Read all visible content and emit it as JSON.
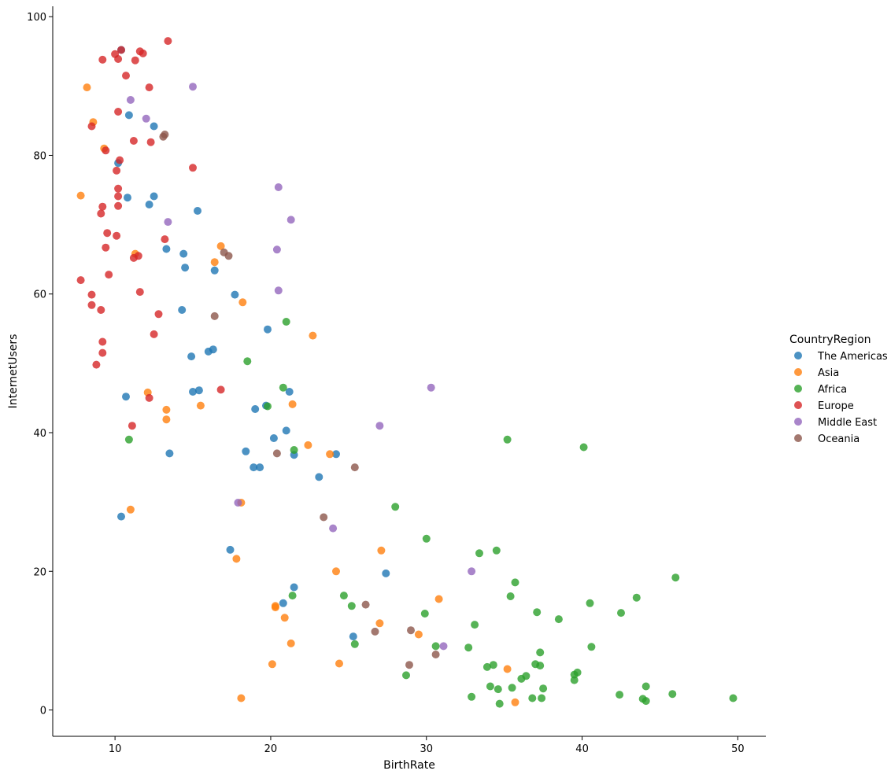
{
  "chart_data": {
    "type": "scatter",
    "title": "",
    "xlabel": "BirthRate",
    "ylabel": "InternetUsers",
    "xlim": [
      6,
      51.8
    ],
    "ylim": [
      -3.8,
      101.5
    ],
    "xticks": [
      10,
      20,
      30,
      40,
      50
    ],
    "yticks": [
      0,
      20,
      40,
      60,
      80,
      100
    ],
    "grid": false,
    "legend": {
      "title": "CountryRegion",
      "placement": "right"
    },
    "series": [
      {
        "name": "The Americas",
        "color": "#1f77b4",
        "points": [
          [
            10.4,
            95.2
          ],
          [
            10.9,
            85.8
          ],
          [
            12.5,
            84.2
          ],
          [
            10.2,
            78.9
          ],
          [
            10.8,
            73.9
          ],
          [
            12.2,
            72.9
          ],
          [
            12.5,
            74.1
          ],
          [
            15.3,
            72.0
          ],
          [
            13.3,
            66.5
          ],
          [
            14.4,
            65.8
          ],
          [
            14.5,
            63.8
          ],
          [
            16.4,
            63.4
          ],
          [
            17.7,
            59.9
          ],
          [
            14.3,
            57.7
          ],
          [
            19.8,
            54.9
          ],
          [
            14.9,
            51.0
          ],
          [
            16.0,
            51.7
          ],
          [
            16.3,
            52.0
          ],
          [
            15.0,
            45.9
          ],
          [
            15.4,
            46.1
          ],
          [
            10.7,
            45.2
          ],
          [
            19.0,
            43.4
          ],
          [
            19.7,
            43.9
          ],
          [
            21.2,
            45.9
          ],
          [
            20.2,
            39.2
          ],
          [
            21.0,
            40.3
          ],
          [
            13.5,
            37.0
          ],
          [
            18.4,
            37.3
          ],
          [
            21.5,
            36.8
          ],
          [
            24.2,
            36.9
          ],
          [
            18.9,
            35.0
          ],
          [
            19.3,
            35.0
          ],
          [
            23.1,
            33.6
          ],
          [
            10.4,
            27.9
          ],
          [
            17.4,
            23.1
          ],
          [
            27.4,
            19.7
          ],
          [
            21.5,
            17.7
          ],
          [
            20.8,
            15.4
          ],
          [
            25.3,
            10.6
          ]
        ]
      },
      {
        "name": "Asia",
        "color": "#ff7f0e",
        "points": [
          [
            8.2,
            89.8
          ],
          [
            8.6,
            84.8
          ],
          [
            9.3,
            81.0
          ],
          [
            7.8,
            74.2
          ],
          [
            11.3,
            65.8
          ],
          [
            16.8,
            66.9
          ],
          [
            16.4,
            64.6
          ],
          [
            18.2,
            58.8
          ],
          [
            22.7,
            54.0
          ],
          [
            12.1,
            45.8
          ],
          [
            15.5,
            43.9
          ],
          [
            21.4,
            44.1
          ],
          [
            13.3,
            43.3
          ],
          [
            13.3,
            41.9
          ],
          [
            22.4,
            38.2
          ],
          [
            23.8,
            36.9
          ],
          [
            18.1,
            29.9
          ],
          [
            11.0,
            28.9
          ],
          [
            17.8,
            21.8
          ],
          [
            27.1,
            23.0
          ],
          [
            24.2,
            20.0
          ],
          [
            30.8,
            16.0
          ],
          [
            20.3,
            15.0
          ],
          [
            20.3,
            14.8
          ],
          [
            20.9,
            13.3
          ],
          [
            27.0,
            12.5
          ],
          [
            29.5,
            10.9
          ],
          [
            21.3,
            9.6
          ],
          [
            20.1,
            6.6
          ],
          [
            24.4,
            6.7
          ],
          [
            35.2,
            5.9
          ],
          [
            18.1,
            1.7
          ],
          [
            35.7,
            1.1
          ]
        ]
      },
      {
        "name": "Africa",
        "color": "#2ca02c",
        "points": [
          [
            21.0,
            56.0
          ],
          [
            18.5,
            50.3
          ],
          [
            20.8,
            46.5
          ],
          [
            19.8,
            43.8
          ],
          [
            21.5,
            37.5
          ],
          [
            10.9,
            39.0
          ],
          [
            35.2,
            39.0
          ],
          [
            40.1,
            37.9
          ],
          [
            28.0,
            29.3
          ],
          [
            30.0,
            24.7
          ],
          [
            33.4,
            22.6
          ],
          [
            34.5,
            23.0
          ],
          [
            46.0,
            19.1
          ],
          [
            35.7,
            18.4
          ],
          [
            21.4,
            16.5
          ],
          [
            24.7,
            16.5
          ],
          [
            25.2,
            15.0
          ],
          [
            35.4,
            16.4
          ],
          [
            43.5,
            16.2
          ],
          [
            40.5,
            15.4
          ],
          [
            37.1,
            14.1
          ],
          [
            42.5,
            14.0
          ],
          [
            29.9,
            13.9
          ],
          [
            38.5,
            13.1
          ],
          [
            33.1,
            12.3
          ],
          [
            25.4,
            9.5
          ],
          [
            30.6,
            9.2
          ],
          [
            32.7,
            9.0
          ],
          [
            40.6,
            9.1
          ],
          [
            37.3,
            8.3
          ],
          [
            37.0,
            6.6
          ],
          [
            37.3,
            6.4
          ],
          [
            33.9,
            6.2
          ],
          [
            34.3,
            6.5
          ],
          [
            36.4,
            4.9
          ],
          [
            36.1,
            4.5
          ],
          [
            28.7,
            5.0
          ],
          [
            39.5,
            5.1
          ],
          [
            39.7,
            5.4
          ],
          [
            39.5,
            4.3
          ],
          [
            34.1,
            3.4
          ],
          [
            34.6,
            3.0
          ],
          [
            35.5,
            3.2
          ],
          [
            37.5,
            3.1
          ],
          [
            44.1,
            3.4
          ],
          [
            32.9,
            1.9
          ],
          [
            36.8,
            1.7
          ],
          [
            37.4,
            1.7
          ],
          [
            42.4,
            2.2
          ],
          [
            43.9,
            1.6
          ],
          [
            44.1,
            1.3
          ],
          [
            45.8,
            2.3
          ],
          [
            49.7,
            1.7
          ],
          [
            34.7,
            0.9
          ]
        ]
      },
      {
        "name": "Europe",
        "color": "#d62728",
        "points": [
          [
            13.4,
            96.5
          ],
          [
            11.6,
            95.0
          ],
          [
            11.8,
            94.7
          ],
          [
            10.4,
            95.2
          ],
          [
            10.0,
            94.6
          ],
          [
            9.2,
            93.8
          ],
          [
            10.2,
            93.9
          ],
          [
            11.3,
            93.7
          ],
          [
            10.7,
            91.5
          ],
          [
            12.2,
            89.8
          ],
          [
            10.2,
            86.3
          ],
          [
            8.5,
            84.2
          ],
          [
            11.2,
            82.1
          ],
          [
            12.3,
            81.9
          ],
          [
            9.4,
            80.7
          ],
          [
            10.3,
            79.3
          ],
          [
            10.1,
            77.8
          ],
          [
            15.0,
            78.2
          ],
          [
            10.2,
            75.2
          ],
          [
            10.2,
            74.1
          ],
          [
            9.2,
            72.6
          ],
          [
            10.2,
            72.7
          ],
          [
            9.1,
            71.6
          ],
          [
            9.5,
            68.8
          ],
          [
            10.1,
            68.4
          ],
          [
            13.2,
            67.9
          ],
          [
            9.4,
            66.7
          ],
          [
            11.5,
            65.5
          ],
          [
            11.2,
            65.2
          ],
          [
            9.6,
            62.8
          ],
          [
            7.8,
            62.0
          ],
          [
            8.5,
            59.9
          ],
          [
            11.6,
            60.3
          ],
          [
            8.5,
            58.4
          ],
          [
            9.1,
            57.7
          ],
          [
            12.8,
            57.1
          ],
          [
            12.5,
            54.2
          ],
          [
            9.2,
            53.1
          ],
          [
            9.2,
            51.5
          ],
          [
            8.8,
            49.8
          ],
          [
            16.8,
            46.2
          ],
          [
            12.2,
            45.0
          ],
          [
            11.1,
            41.0
          ]
        ]
      },
      {
        "name": "Middle East",
        "color": "#9467bd",
        "points": [
          [
            15.0,
            89.9
          ],
          [
            11.0,
            88.0
          ],
          [
            12.0,
            85.3
          ],
          [
            20.5,
            75.4
          ],
          [
            21.3,
            70.7
          ],
          [
            13.4,
            70.4
          ],
          [
            20.4,
            66.4
          ],
          [
            20.5,
            60.5
          ],
          [
            30.3,
            46.5
          ],
          [
            27.0,
            41.0
          ],
          [
            17.9,
            29.9
          ],
          [
            24.0,
            26.2
          ],
          [
            32.9,
            20.0
          ],
          [
            31.1,
            9.2
          ]
        ]
      },
      {
        "name": "Oceania",
        "color": "#8c564b",
        "points": [
          [
            13.2,
            83.0
          ],
          [
            13.1,
            82.7
          ],
          [
            17.0,
            66.0
          ],
          [
            17.3,
            65.5
          ],
          [
            16.4,
            56.8
          ],
          [
            20.4,
            37.0
          ],
          [
            25.4,
            35.0
          ],
          [
            23.4,
            27.8
          ],
          [
            26.1,
            15.2
          ],
          [
            26.7,
            11.3
          ],
          [
            29.0,
            11.5
          ],
          [
            28.9,
            6.5
          ],
          [
            30.6,
            8.0
          ]
        ]
      }
    ]
  }
}
